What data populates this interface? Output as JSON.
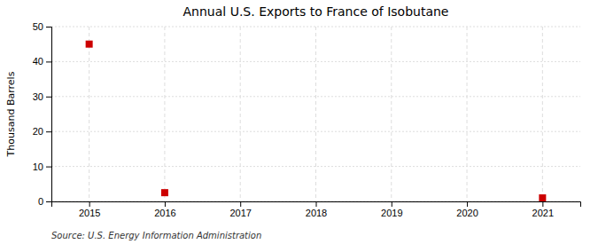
{
  "chart_data": {
    "type": "scatter",
    "title": "Annual U.S. Exports to France of Isobutane",
    "ylabel": "Thousand Barrels",
    "annotation": "Source: U.S. Energy Information Administration",
    "x": [
      2015,
      2016,
      2021
    ],
    "values": [
      45,
      2.5,
      1
    ],
    "color": "#cc0000",
    "marker": "square",
    "xlim": [
      2014.5,
      2021.5
    ],
    "xticks": [
      2015,
      2016,
      2017,
      2018,
      2019,
      2020,
      2021
    ],
    "ylim": [
      0,
      50
    ],
    "yticks": [
      0,
      10,
      20,
      30,
      40,
      50
    ],
    "grid": true
  }
}
